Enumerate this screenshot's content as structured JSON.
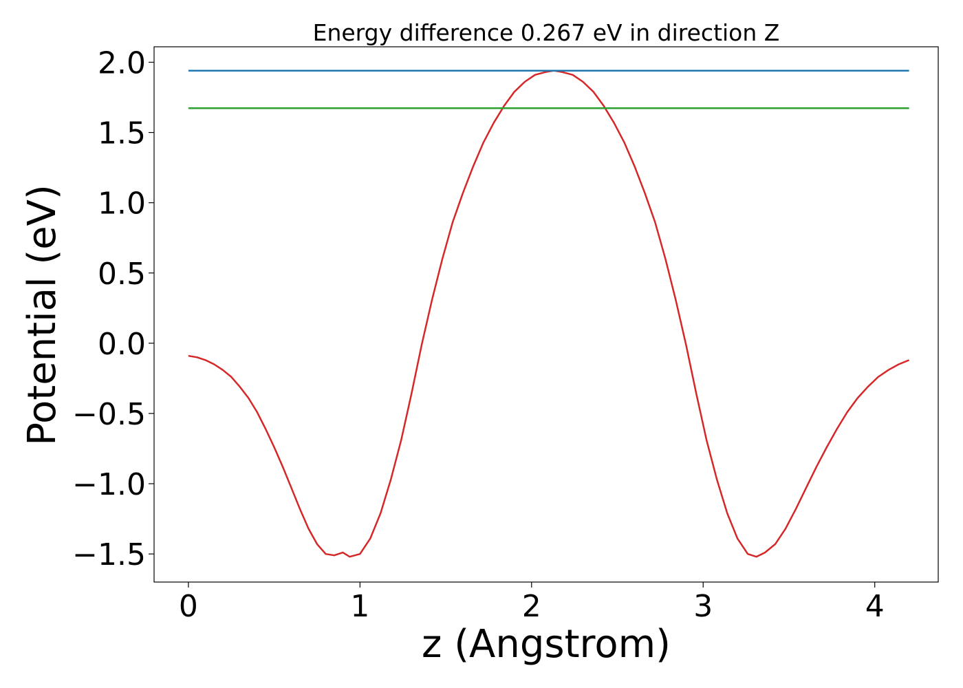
{
  "chart_data": {
    "type": "line",
    "title": "Energy difference 0.267 eV in direction Z",
    "xlabel": "z (Angstrom)",
    "ylabel": "Potential (eV)",
    "xlim": [
      -0.2,
      4.37
    ],
    "ylim": [
      -1.7,
      2.11
    ],
    "xticks": [
      0,
      1,
      2,
      3,
      4
    ],
    "xtick_labels": [
      "0",
      "1",
      "2",
      "3",
      "4"
    ],
    "yticks": [
      -1.5,
      -1.0,
      -0.5,
      0.0,
      0.5,
      1.0,
      1.5,
      2.0
    ],
    "ytick_labels": [
      "−1.5",
      "−1.0",
      "−0.5",
      "0.0",
      "0.5",
      "1.0",
      "1.5",
      "2.0"
    ],
    "grid": false,
    "series": [
      {
        "color": "#d62728",
        "x": [
          0.0,
          0.05,
          0.1,
          0.15,
          0.2,
          0.25,
          0.3,
          0.35,
          0.4,
          0.45,
          0.5,
          0.55,
          0.6,
          0.65,
          0.7,
          0.75,
          0.8,
          0.85,
          0.9,
          0.94,
          1.0,
          1.06,
          1.12,
          1.18,
          1.24,
          1.3,
          1.36,
          1.42,
          1.48,
          1.54,
          1.6,
          1.66,
          1.72,
          1.78,
          1.84,
          1.9,
          1.96,
          2.02,
          2.08,
          2.13,
          2.18,
          2.24,
          2.3,
          2.36,
          2.42,
          2.48,
          2.54,
          2.6,
          2.66,
          2.72,
          2.78,
          2.84,
          2.9,
          2.96,
          3.02,
          3.08,
          3.14,
          3.2,
          3.26,
          3.31,
          3.36,
          3.42,
          3.48,
          3.54,
          3.6,
          3.66,
          3.72,
          3.78,
          3.84,
          3.9,
          3.96,
          4.02,
          4.08,
          4.14,
          4.2
        ],
        "y": [
          -0.09,
          -0.1,
          -0.12,
          -0.15,
          -0.19,
          -0.24,
          -0.31,
          -0.39,
          -0.49,
          -0.61,
          -0.74,
          -0.88,
          -1.03,
          -1.18,
          -1.32,
          -1.43,
          -1.5,
          -1.51,
          -1.49,
          -1.52,
          -1.5,
          -1.39,
          -1.21,
          -0.97,
          -0.69,
          -0.36,
          -0.01,
          0.31,
          0.6,
          0.86,
          1.07,
          1.26,
          1.43,
          1.57,
          1.69,
          1.79,
          1.86,
          1.91,
          1.93,
          1.94,
          1.93,
          1.91,
          1.86,
          1.79,
          1.69,
          1.57,
          1.43,
          1.26,
          1.07,
          0.86,
          0.6,
          0.31,
          -0.01,
          -0.36,
          -0.69,
          -0.97,
          -1.21,
          -1.39,
          -1.5,
          -1.52,
          -1.49,
          -1.43,
          -1.32,
          -1.18,
          -1.03,
          -0.88,
          -0.74,
          -0.61,
          -0.49,
          -0.39,
          -0.31,
          -0.24,
          -0.19,
          -0.15,
          -0.12
        ]
      },
      {
        "color": "#1f77b4",
        "x": [
          0.0,
          4.2
        ],
        "y": [
          1.94,
          1.94
        ]
      },
      {
        "color": "#2ca02c",
        "x": [
          0.0,
          4.2
        ],
        "y": [
          1.673,
          1.673
        ]
      }
    ]
  }
}
